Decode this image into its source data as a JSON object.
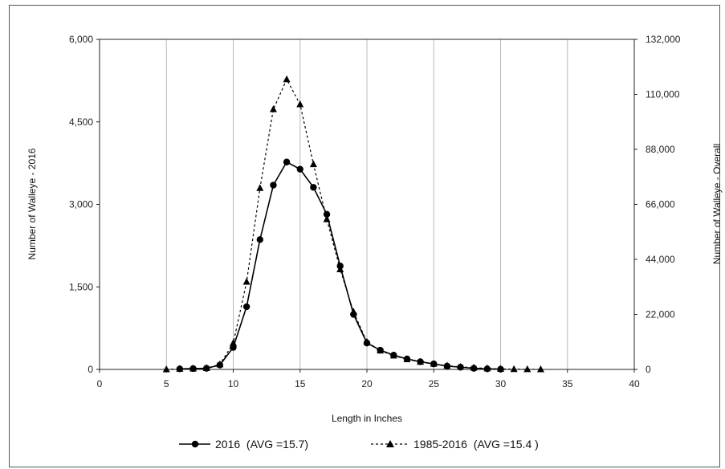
{
  "chart_data": {
    "type": "line",
    "xlabel": "Length in Inches",
    "ylabel_left": "Number of Walleye - 2016",
    "ylabel_right": "Number of Walleye - Overall",
    "xlim": [
      0,
      40
    ],
    "ylim_left": [
      0,
      6000
    ],
    "ylim_right": [
      0,
      132000
    ],
    "x_ticks": [
      "0",
      "5",
      "10",
      "15",
      "20",
      "25",
      "30",
      "35",
      "40"
    ],
    "y_left_ticks": [
      "0",
      "1,500",
      "3,000",
      "4,500",
      "6,000"
    ],
    "y_right_ticks": [
      "0",
      "22,000",
      "44,000",
      "66,000",
      "88,000",
      "110,000",
      "132,000"
    ],
    "grid": "vertical",
    "legend_position": "bottom",
    "series": [
      {
        "name": "2016  (AVG =15.7)",
        "axis": "left",
        "style": "solid",
        "marker": "circle",
        "color": "#000000",
        "x": [
          6,
          7,
          8,
          9,
          10,
          11,
          12,
          13,
          14,
          15,
          16,
          17,
          18,
          19,
          20,
          21,
          22,
          23,
          24,
          25,
          26,
          27,
          28,
          29,
          30
        ],
        "values": [
          10,
          15,
          20,
          80,
          400,
          1140,
          2360,
          3350,
          3770,
          3640,
          3310,
          2820,
          1880,
          1000,
          480,
          350,
          260,
          190,
          140,
          100,
          60,
          40,
          20,
          10,
          5
        ]
      },
      {
        "name": "1985-2016  (AVG =15.4 )",
        "axis": "right",
        "style": "dashed",
        "marker": "triangle",
        "color": "#000000",
        "x": [
          5,
          6,
          7,
          8,
          9,
          10,
          11,
          12,
          13,
          14,
          15,
          16,
          17,
          18,
          19,
          20,
          21,
          22,
          23,
          24,
          25,
          26,
          27,
          28,
          29,
          30,
          31,
          32,
          33
        ],
        "values": [
          0,
          200,
          300,
          500,
          2000,
          10500,
          35000,
          72500,
          104000,
          116000,
          106000,
          82000,
          60000,
          40000,
          23000,
          11000,
          7500,
          5500,
          4000,
          3000,
          2200,
          1500,
          1000,
          700,
          400,
          200,
          100,
          50,
          0
        ]
      }
    ]
  }
}
